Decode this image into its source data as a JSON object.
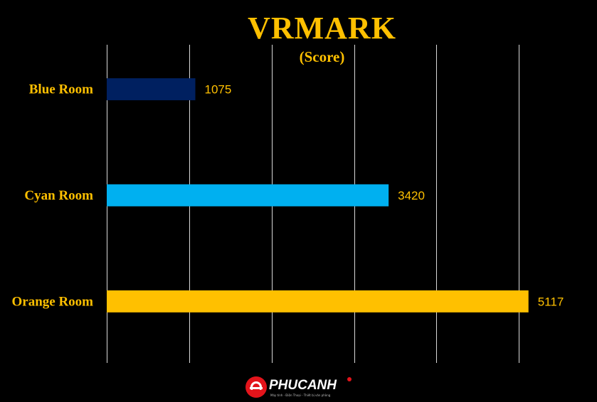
{
  "chart_data": {
    "type": "bar",
    "orientation": "horizontal",
    "title": "VRMARK",
    "subtitle": "(Score)",
    "categories": [
      "Blue Room",
      "Cyan Room",
      "Orange Room"
    ],
    "values": [
      1075,
      3420,
      5117
    ],
    "data_labels": [
      "1075",
      "3420",
      "5117"
    ],
    "bar_colors": [
      "#002060",
      "#00B0F0",
      "#FFC000"
    ],
    "xlim": [
      0,
      6000
    ],
    "grid": "vertical",
    "grid_color": "#FFFFFF",
    "label_color": "#FFC000",
    "background": "#000000",
    "legend": "none"
  },
  "branding": {
    "logo_text": "PHUCANH",
    "logo_tagline": "Máy tính - Điện Thoại - Thiết bị văn phòng",
    "logo_color": "#E3141B"
  }
}
